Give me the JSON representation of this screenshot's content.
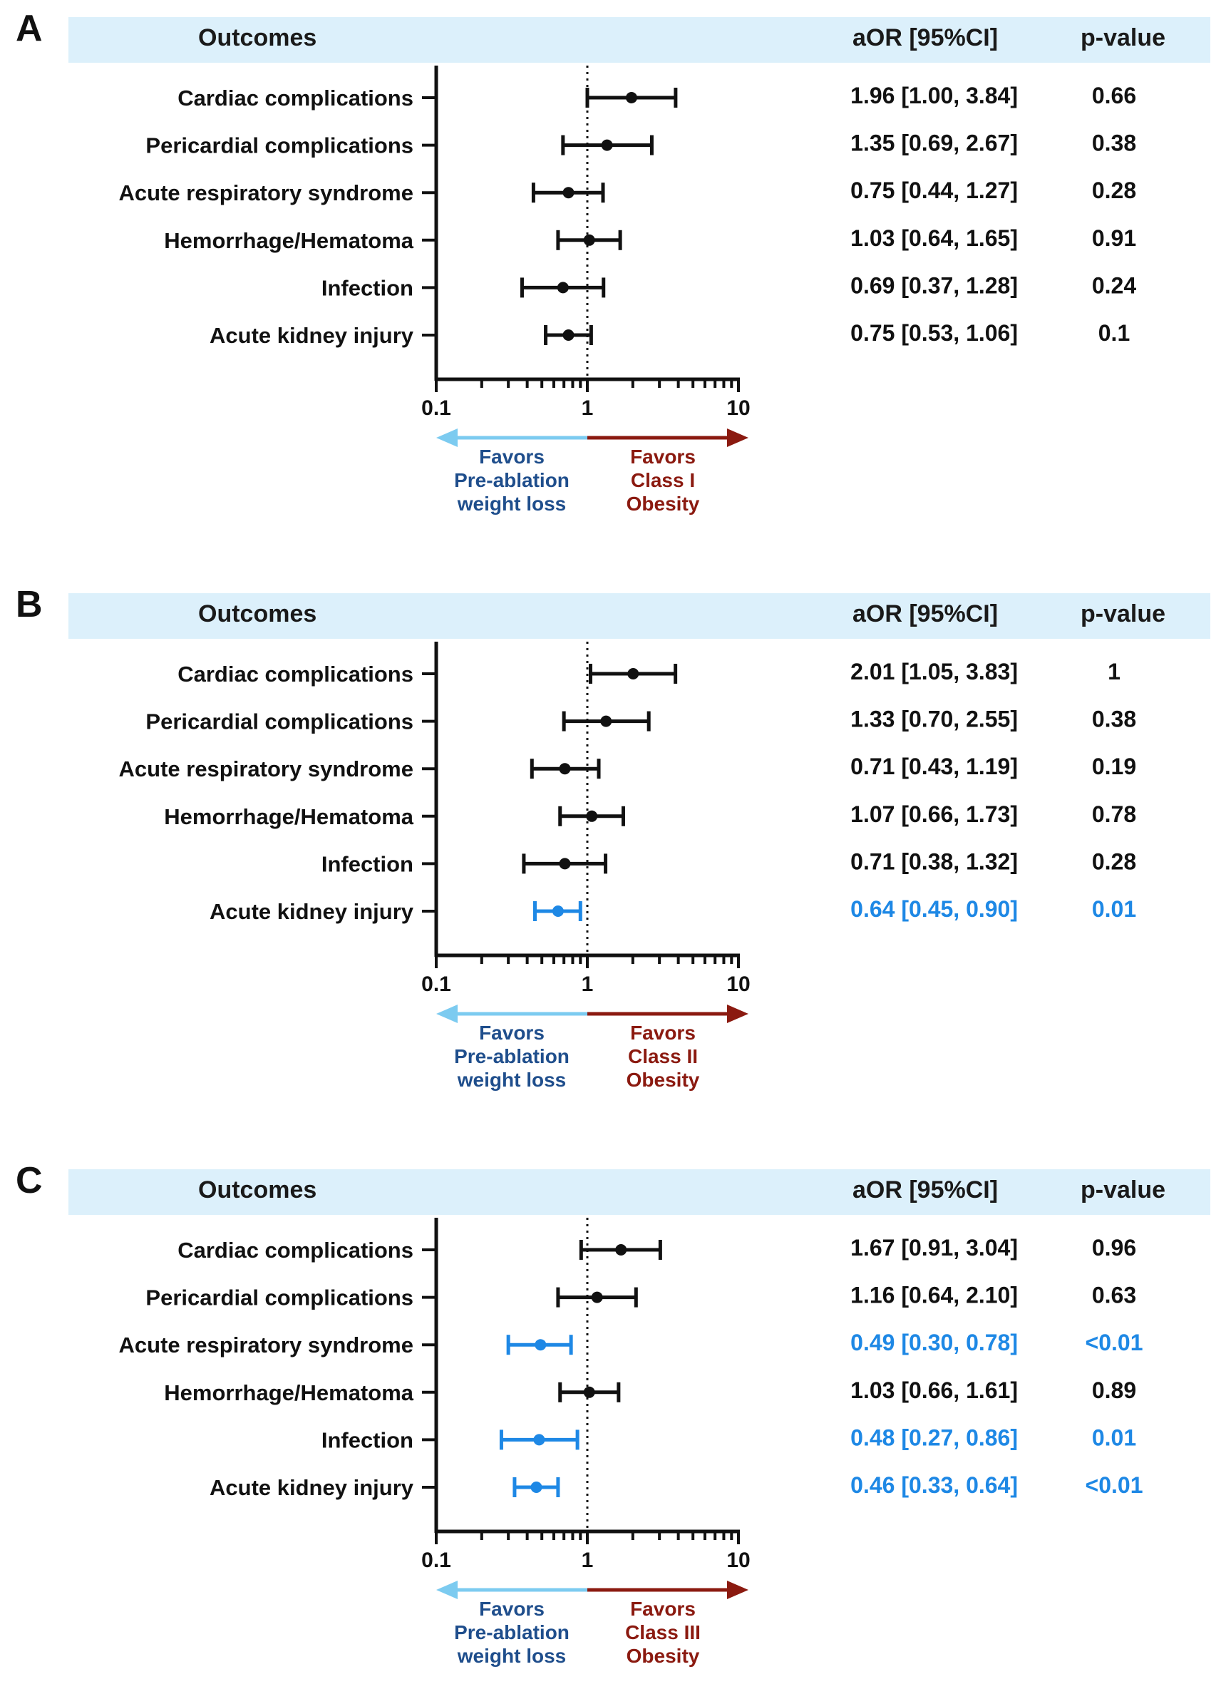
{
  "header": {
    "outcomes": "Outcomes",
    "estimate": "aOR [95%CI]",
    "pvalue": "p-value"
  },
  "colors": {
    "black": "#111111",
    "significant": "#1e88e5",
    "header_bg": "#dcf0fb",
    "left_arrow": "#7ccbf0",
    "right_arrow": "#8b1a10",
    "left_text": "#1f4e8c",
    "right_text": "#8b1a10"
  },
  "chart_data": [
    {
      "type": "forest",
      "panel": "A",
      "xscale": "log",
      "xlim": [
        0.1,
        10
      ],
      "xticklabels": [
        "0.1",
        "1",
        "10"
      ],
      "reference_line": 1,
      "left_arrow_label": [
        "Favors",
        "Pre-ablation",
        "weight loss"
      ],
      "right_arrow_label": [
        "Favors",
        "Class I",
        "Obesity"
      ],
      "rows": [
        {
          "label": "Cardiac complications",
          "or": 1.96,
          "lo": 1.0,
          "hi": 3.84,
          "ci_text": "1.96 [1.00, 3.84]",
          "p": "0.66",
          "significant": false
        },
        {
          "label": "Pericardial complications",
          "or": 1.35,
          "lo": 0.69,
          "hi": 2.67,
          "ci_text": "1.35 [0.69, 2.67]",
          "p": "0.38",
          "significant": false
        },
        {
          "label": "Acute respiratory syndrome",
          "or": 0.75,
          "lo": 0.44,
          "hi": 1.27,
          "ci_text": "0.75 [0.44, 1.27]",
          "p": "0.28",
          "significant": false
        },
        {
          "label": "Hemorrhage/Hematoma",
          "or": 1.03,
          "lo": 0.64,
          "hi": 1.65,
          "ci_text": "1.03 [0.64, 1.65]",
          "p": "0.91",
          "significant": false
        },
        {
          "label": "Infection",
          "or": 0.69,
          "lo": 0.37,
          "hi": 1.28,
          "ci_text": "0.69 [0.37, 1.28]",
          "p": "0.24",
          "significant": false
        },
        {
          "label": "Acute kidney injury",
          "or": 0.75,
          "lo": 0.53,
          "hi": 1.06,
          "ci_text": "0.75 [0.53, 1.06]",
          "p": "0.1",
          "significant": false
        }
      ]
    },
    {
      "type": "forest",
      "panel": "B",
      "xscale": "log",
      "xlim": [
        0.1,
        10
      ],
      "xticklabels": [
        "0.1",
        "1",
        "10"
      ],
      "reference_line": 1,
      "left_arrow_label": [
        "Favors",
        "Pre-ablation",
        "weight loss"
      ],
      "right_arrow_label": [
        "Favors",
        "Class II",
        "Obesity"
      ],
      "rows": [
        {
          "label": "Cardiac complications",
          "or": 2.01,
          "lo": 1.05,
          "hi": 3.83,
          "ci_text": "2.01 [1.05, 3.83]",
          "p": "1",
          "significant": false
        },
        {
          "label": "Pericardial complications",
          "or": 1.33,
          "lo": 0.7,
          "hi": 2.55,
          "ci_text": "1.33 [0.70, 2.55]",
          "p": "0.38",
          "significant": false
        },
        {
          "label": "Acute respiratory syndrome",
          "or": 0.71,
          "lo": 0.43,
          "hi": 1.19,
          "ci_text": "0.71 [0.43, 1.19]",
          "p": "0.19",
          "significant": false
        },
        {
          "label": "Hemorrhage/Hematoma",
          "or": 1.07,
          "lo": 0.66,
          "hi": 1.73,
          "ci_text": "1.07 [0.66, 1.73]",
          "p": "0.78",
          "significant": false
        },
        {
          "label": "Infection",
          "or": 0.71,
          "lo": 0.38,
          "hi": 1.32,
          "ci_text": "0.71 [0.38, 1.32]",
          "p": "0.28",
          "significant": false
        },
        {
          "label": "Acute kidney injury",
          "or": 0.64,
          "lo": 0.45,
          "hi": 0.9,
          "ci_text": "0.64 [0.45, 0.90]",
          "p": "0.01",
          "significant": true
        }
      ]
    },
    {
      "type": "forest",
      "panel": "C",
      "xscale": "log",
      "xlim": [
        0.1,
        10
      ],
      "xticklabels": [
        "0.1",
        "1",
        "10"
      ],
      "reference_line": 1,
      "left_arrow_label": [
        "Favors",
        "Pre-ablation",
        "weight loss"
      ],
      "right_arrow_label": [
        "Favors",
        "Class III",
        "Obesity"
      ],
      "rows": [
        {
          "label": "Cardiac complications",
          "or": 1.67,
          "lo": 0.91,
          "hi": 3.04,
          "ci_text": "1.67 [0.91, 3.04]",
          "p": "0.96",
          "significant": false
        },
        {
          "label": "Pericardial complications",
          "or": 1.16,
          "lo": 0.64,
          "hi": 2.1,
          "ci_text": "1.16 [0.64, 2.10]",
          "p": "0.63",
          "significant": false
        },
        {
          "label": "Acute respiratory syndrome",
          "or": 0.49,
          "lo": 0.3,
          "hi": 0.78,
          "ci_text": "0.49 [0.30, 0.78]",
          "p": "<0.01",
          "significant": true
        },
        {
          "label": "Hemorrhage/Hematoma",
          "or": 1.03,
          "lo": 0.66,
          "hi": 1.61,
          "ci_text": "1.03 [0.66, 1.61]",
          "p": "0.89",
          "significant": false
        },
        {
          "label": "Infection",
          "or": 0.48,
          "lo": 0.27,
          "hi": 0.86,
          "ci_text": "0.48 [0.27, 0.86]",
          "p": "0.01",
          "significant": true
        },
        {
          "label": "Acute kidney injury",
          "or": 0.46,
          "lo": 0.33,
          "hi": 0.64,
          "ci_text": "0.46 [0.33, 0.64]",
          "p": "<0.01",
          "significant": true
        }
      ]
    }
  ]
}
